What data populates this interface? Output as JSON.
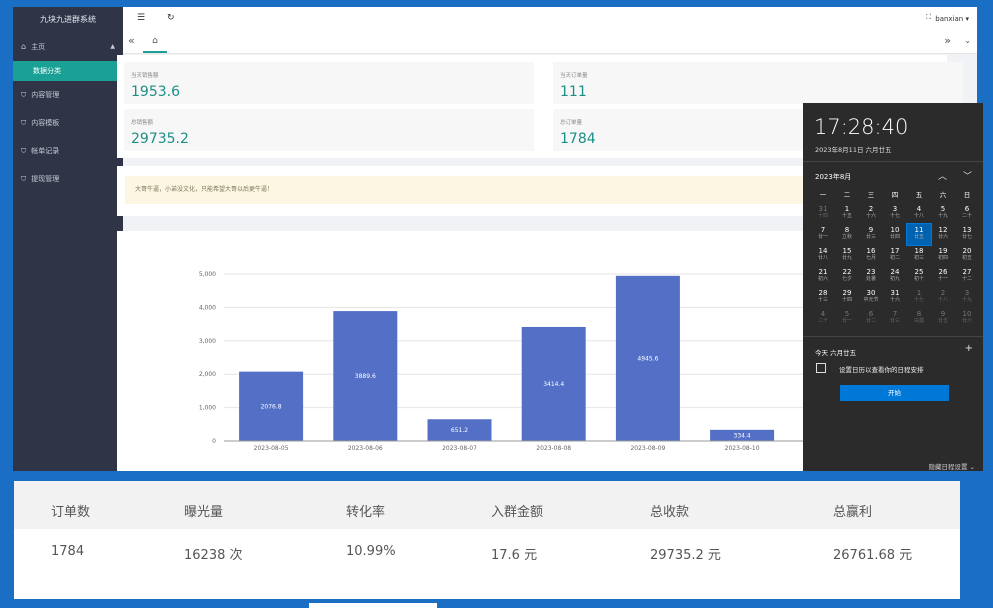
{
  "sidebar": {
    "brand": "九块九进群系统",
    "items": [
      {
        "label": "主页",
        "icon": "home-icon",
        "sub": [
          "数据分类"
        ]
      },
      {
        "label": "内容管理",
        "icon": "shield-icon"
      },
      {
        "label": "内容模板",
        "icon": "shield-icon"
      },
      {
        "label": "帐单记录",
        "icon": "shield-icon"
      },
      {
        "label": "提现管理",
        "icon": "shield-icon"
      }
    ]
  },
  "topbar": {
    "user": "banxian",
    "menu_icon": "menu-icon",
    "refresh_icon": "refresh-icon",
    "fullscreen_icon": "fullscreen-icon"
  },
  "tabs": {
    "home_icon": "home-icon"
  },
  "stats": [
    {
      "label": "当天销售额",
      "value": "1953.6"
    },
    {
      "label": "当天订单量",
      "value": "111"
    },
    {
      "label": "总销售额",
      "value": "29735.2"
    },
    {
      "label": "总订单量",
      "value": "1784"
    }
  ],
  "notice": "大哥牛逼，小弟没文化，只能希望大哥以后更牛逼！",
  "chart_data": {
    "type": "bar",
    "categories": [
      "2023-08-05",
      "2023-08-06",
      "2023-08-07",
      "2023-08-08",
      "2023-08-09",
      "2023-08-10"
    ],
    "values": [
      2076.8,
      3889.6,
      651.2,
      3414.4,
      4945.6,
      334.4
    ],
    "data_labels": [
      "2076.8",
      "3889.6",
      "651.2",
      "3414.4",
      "4945.6",
      "334.4"
    ],
    "yticks": [
      "0",
      "1,000",
      "2,000",
      "3,000",
      "4,000",
      "5,000"
    ],
    "ylim": [
      0,
      5000
    ],
    "bar_color": "#5470c6",
    "grid": true
  },
  "calendar": {
    "time": "17:28:40",
    "date_long": "2023年8月11日 六月廿五",
    "month": "2023年8月",
    "weekdays": [
      "一",
      "二",
      "三",
      "四",
      "五",
      "六",
      "日"
    ],
    "days": [
      {
        "d": "31",
        "l": "十四",
        "dim": true
      },
      {
        "d": "1",
        "l": "十五"
      },
      {
        "d": "2",
        "l": "十六"
      },
      {
        "d": "3",
        "l": "十七"
      },
      {
        "d": "4",
        "l": "十八"
      },
      {
        "d": "5",
        "l": "十九"
      },
      {
        "d": "6",
        "l": "二十"
      },
      {
        "d": "7",
        "l": "廿一"
      },
      {
        "d": "8",
        "l": "立秋"
      },
      {
        "d": "9",
        "l": "廿三"
      },
      {
        "d": "10",
        "l": "廿四"
      },
      {
        "d": "11",
        "l": "廿五",
        "today": true
      },
      {
        "d": "12",
        "l": "廿六"
      },
      {
        "d": "13",
        "l": "廿七"
      },
      {
        "d": "14",
        "l": "廿八"
      },
      {
        "d": "15",
        "l": "廿九"
      },
      {
        "d": "16",
        "l": "七月"
      },
      {
        "d": "17",
        "l": "初二"
      },
      {
        "d": "18",
        "l": "初三"
      },
      {
        "d": "19",
        "l": "初四"
      },
      {
        "d": "20",
        "l": "初五"
      },
      {
        "d": "21",
        "l": "初六"
      },
      {
        "d": "22",
        "l": "七夕"
      },
      {
        "d": "23",
        "l": "处暑"
      },
      {
        "d": "24",
        "l": "初九"
      },
      {
        "d": "25",
        "l": "初十"
      },
      {
        "d": "26",
        "l": "十一"
      },
      {
        "d": "27",
        "l": "十二"
      },
      {
        "d": "28",
        "l": "十三"
      },
      {
        "d": "29",
        "l": "十四"
      },
      {
        "d": "30",
        "l": "中元节"
      },
      {
        "d": "31",
        "l": "十六"
      },
      {
        "d": "1",
        "l": "十七",
        "dim": true
      },
      {
        "d": "2",
        "l": "十八",
        "dim": true
      },
      {
        "d": "3",
        "l": "十九",
        "dim": true
      },
      {
        "d": "4",
        "l": "二十",
        "dim": true
      },
      {
        "d": "5",
        "l": "廿一",
        "dim": true
      },
      {
        "d": "6",
        "l": "廿二",
        "dim": true
      },
      {
        "d": "7",
        "l": "廿三",
        "dim": true
      },
      {
        "d": "8",
        "l": "白露",
        "dim": true
      },
      {
        "d": "9",
        "l": "廿五",
        "dim": true
      },
      {
        "d": "10",
        "l": "廿六",
        "dim": true
      }
    ],
    "agenda_title": "今天 六月廿五",
    "agenda_text": "设置日历以查看你的日程安排",
    "start_button": "开始",
    "hide_link": "隐藏日程设置"
  },
  "summary": {
    "headers": [
      "订单数",
      "曝光量",
      "转化率",
      "入群金额",
      "总收款",
      "总赢利"
    ],
    "values": [
      "1784",
      "16238 次",
      "10.99%",
      "17.6 元",
      "29735.2 元",
      "26761.68 元"
    ]
  }
}
